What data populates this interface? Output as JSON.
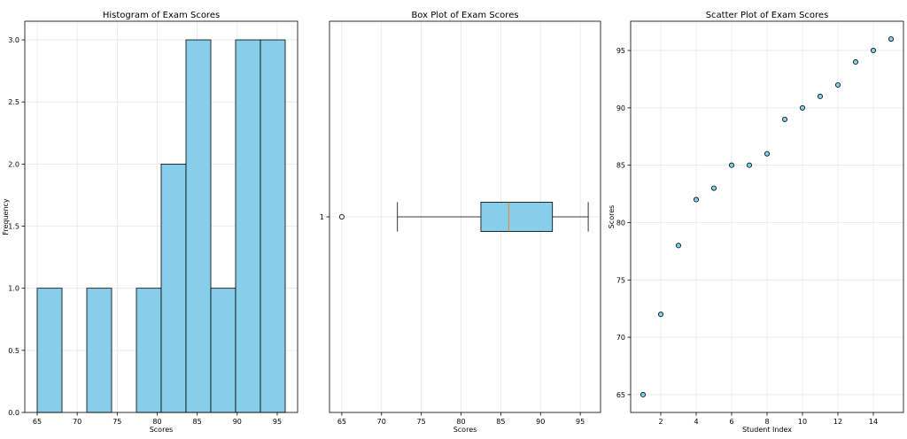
{
  "chart_data": [
    {
      "type": "histogram",
      "title": "Histogram of Exam Scores",
      "xlabel": "Scores",
      "ylabel": "Frequency",
      "xlim": [
        63.45,
        97.55
      ],
      "ylim": [
        0,
        3.15
      ],
      "xticks": [
        65,
        70,
        75,
        80,
        85,
        90,
        95
      ],
      "yticks": [
        0.0,
        0.5,
        1.0,
        1.5,
        2.0,
        2.5,
        3.0
      ],
      "bins": [
        {
          "x0": 65.0,
          "x1": 68.1,
          "count": 1
        },
        {
          "x0": 68.1,
          "x1": 71.2,
          "count": 0
        },
        {
          "x0": 71.2,
          "x1": 74.3,
          "count": 1
        },
        {
          "x0": 74.3,
          "x1": 77.4,
          "count": 0
        },
        {
          "x0": 77.4,
          "x1": 80.5,
          "count": 1
        },
        {
          "x0": 80.5,
          "x1": 83.6,
          "count": 2
        },
        {
          "x0": 83.6,
          "x1": 86.7,
          "count": 3
        },
        {
          "x0": 86.7,
          "x1": 89.8,
          "count": 1
        },
        {
          "x0": 89.8,
          "x1": 92.9,
          "count": 3
        },
        {
          "x0": 92.9,
          "x1": 96.0,
          "count": 3
        }
      ],
      "bar_color": "#87ceeb",
      "edge_color": "#000000",
      "grid": true
    },
    {
      "type": "box",
      "title": "Box Plot of Exam Scores",
      "xlabel": "Scores",
      "xlim": [
        63.45,
        97.55
      ],
      "ylim": [
        0.5,
        1.5
      ],
      "xticks": [
        65,
        70,
        75,
        80,
        85,
        90,
        95
      ],
      "yticks": [
        1
      ],
      "box": {
        "position": 1,
        "whisker_low": 72,
        "q1": 82.5,
        "median": 86,
        "q3": 91.5,
        "whisker_high": 96,
        "outliers": [
          65
        ]
      },
      "box_color": "#87ceeb",
      "median_color": "#ff7f0e",
      "grid": true
    },
    {
      "type": "scatter",
      "title": "Scatter Plot of Exam Scores",
      "xlabel": "Student Index",
      "ylabel": "Scores",
      "xlim": [
        0.3,
        15.7
      ],
      "ylim": [
        63.45,
        97.55
      ],
      "xticks": [
        2,
        4,
        6,
        8,
        10,
        12,
        14
      ],
      "yticks": [
        65,
        70,
        75,
        80,
        85,
        90,
        95
      ],
      "x": [
        1,
        2,
        3,
        4,
        5,
        6,
        7,
        8,
        9,
        10,
        11,
        12,
        13,
        14,
        15
      ],
      "y": [
        65,
        72,
        78,
        82,
        83,
        85,
        85,
        86,
        89,
        90,
        91,
        92,
        94,
        95,
        96
      ],
      "point_color": "#87ceeb",
      "edge_color": "#000000",
      "grid": true
    }
  ]
}
